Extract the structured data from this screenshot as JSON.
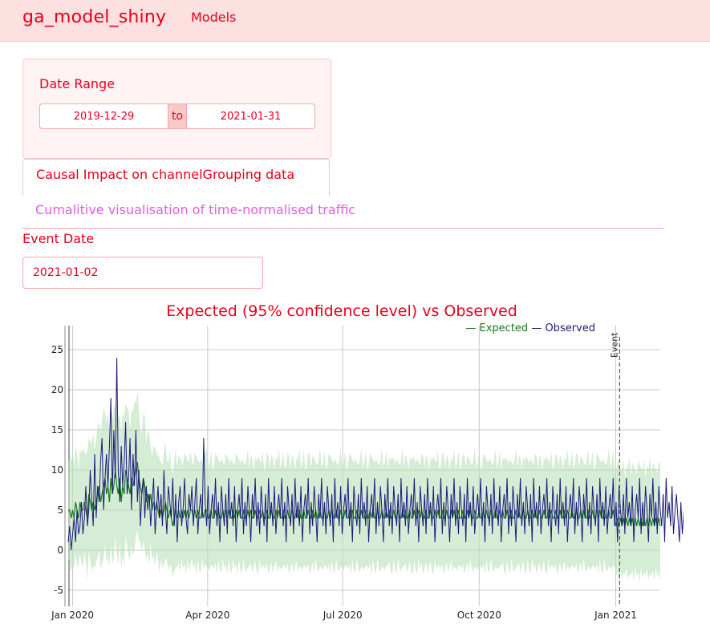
{
  "navbar": {
    "brand": "ga_model_shiny",
    "link": "Models"
  },
  "sidebar": {
    "date_range_label": "Date Range",
    "start_date": "2019-12-29",
    "separator": "to",
    "end_date": "2021-01-31"
  },
  "tabs": [
    {
      "label": "Causal Impact on channelGrouping data",
      "active": true
    },
    {
      "label": "Cumalitive visualisation of time-normalised traffic",
      "active": false
    }
  ],
  "event": {
    "label": "Event Date",
    "value": "2021-01-02"
  },
  "colors": {
    "accent": "#e8001c",
    "navbar_bg": "#fde0e0",
    "inactive_tab": "#e05fe0",
    "expected": "#1a7a1a",
    "observed": "#1a1a7a",
    "band": "#b9dfb9"
  },
  "chart_data": {
    "type": "line",
    "title": "Expected (95% confidence level) vs Observed",
    "legend": {
      "position": "top-right"
    },
    "x_start": "2019-12-29",
    "x_end": "2021-01-31",
    "x_ticks": [
      "Jan 2020",
      "Apr 2020",
      "Jul 2020",
      "Oct 2020",
      "Jan 2021"
    ],
    "x_tick_dates": [
      "2020-01-01",
      "2020-04-01",
      "2020-07-01",
      "2020-10-01",
      "2021-01-01"
    ],
    "y_ticks": [
      -5,
      0,
      5,
      10,
      15,
      20,
      25
    ],
    "ylim": [
      -7,
      28
    ],
    "grid": true,
    "event_date": "2021-01-02",
    "event_label": "Event",
    "series": [
      {
        "name": "Expected",
        "values": [
          5,
          5,
          4,
          5,
          4,
          6,
          5,
          4,
          6,
          5,
          5,
          6,
          5,
          4,
          7,
          6,
          5,
          6,
          5,
          6,
          7,
          8,
          6,
          7,
          8,
          9,
          7,
          8,
          6,
          9,
          7,
          8,
          10,
          8,
          7,
          9,
          6,
          8,
          7,
          10,
          9,
          8,
          7,
          9,
          8,
          9,
          10,
          11,
          9,
          8,
          7,
          9,
          8,
          6,
          7,
          6,
          7,
          5,
          6,
          5,
          6,
          5,
          4,
          5,
          4,
          5,
          6,
          5,
          4,
          5,
          4,
          3,
          4,
          5,
          4,
          5,
          4,
          5,
          4,
          5,
          4,
          5,
          4,
          5,
          5,
          4,
          5,
          4,
          5,
          4,
          4,
          5,
          4,
          5,
          5,
          4,
          4,
          5,
          4,
          4,
          5,
          4,
          5,
          4,
          4,
          5,
          4,
          5,
          4,
          5,
          4,
          4,
          5,
          4,
          5,
          4,
          5,
          4,
          4,
          5,
          4,
          4,
          5,
          4,
          5,
          4,
          4,
          5,
          4,
          4,
          5,
          4,
          5,
          4,
          4,
          5,
          4,
          4,
          5,
          4,
          4,
          5,
          4,
          5,
          4,
          4,
          5,
          4,
          4,
          5,
          4,
          4,
          5,
          4,
          4,
          5,
          4,
          5,
          4,
          4,
          5,
          4,
          4,
          5,
          4,
          4,
          5,
          4,
          5,
          4,
          4,
          5,
          4,
          4,
          5,
          4,
          4,
          5,
          4,
          5,
          4,
          4,
          5,
          4,
          4,
          5,
          4,
          4,
          5,
          4,
          4,
          5,
          4,
          5,
          4,
          4,
          5,
          4,
          4,
          5,
          4,
          4,
          5,
          4,
          4,
          5,
          4,
          5,
          4,
          4,
          5,
          4,
          4,
          5,
          4,
          4,
          5,
          4,
          5,
          4,
          4,
          5,
          4,
          4,
          5,
          4,
          4,
          5,
          4,
          5,
          4,
          4,
          5,
          4,
          4,
          5,
          4,
          4,
          5,
          4,
          5,
          4,
          4,
          5,
          4,
          4,
          5,
          4,
          4,
          5,
          4,
          5,
          4,
          4,
          5,
          4,
          4,
          5,
          4,
          4,
          5,
          4,
          5,
          4,
          4,
          5,
          4,
          4,
          5,
          4,
          4,
          5,
          4,
          5,
          4,
          4,
          5,
          4,
          4,
          5,
          4,
          4,
          5,
          4,
          5,
          4,
          4,
          5,
          4,
          4,
          5,
          4,
          4,
          5,
          4,
          5,
          4,
          4,
          5,
          4,
          4,
          5,
          4,
          4,
          5,
          4,
          5,
          4,
          4,
          5,
          4,
          4,
          5,
          4,
          4,
          5,
          4,
          5,
          4,
          4,
          5,
          4,
          4,
          5,
          4,
          4,
          5,
          4,
          5,
          4,
          4,
          5,
          4,
          4,
          5,
          4,
          4,
          5,
          4,
          5,
          4,
          4,
          5,
          4,
          4,
          5,
          4,
          4,
          5,
          4,
          5,
          4,
          4,
          5,
          4,
          4,
          5,
          4,
          4,
          5,
          4,
          5,
          4,
          4,
          5,
          4,
          4,
          5,
          4,
          4,
          5,
          4,
          3,
          4,
          3,
          4,
          3,
          4,
          3,
          4,
          3,
          4,
          3,
          4,
          3,
          4,
          3,
          4,
          3,
          4,
          3,
          4,
          3,
          4,
          3,
          4,
          3,
          4,
          3,
          4,
          3,
          4,
          3
        ]
      },
      {
        "name": "Observed",
        "values": [
          1,
          3,
          0,
          2,
          4,
          1,
          5,
          2,
          3,
          6,
          2,
          4,
          8,
          3,
          5,
          10,
          6,
          3,
          12,
          4,
          8,
          6,
          11,
          14,
          5,
          9,
          12,
          8,
          13,
          19,
          7,
          15,
          9,
          24,
          10,
          6,
          13,
          8,
          11,
          16,
          7,
          9,
          14,
          5,
          12,
          8,
          15,
          6,
          10,
          3,
          7,
          9,
          4,
          8,
          5,
          7,
          3,
          6,
          9,
          2,
          5,
          8,
          4,
          7,
          3,
          10,
          5,
          2,
          8,
          6,
          4,
          9,
          3,
          7,
          1,
          6,
          8,
          3,
          5,
          9,
          4,
          2,
          7,
          5,
          8,
          3,
          6,
          9,
          2,
          5,
          7,
          4,
          14,
          6,
          3,
          8,
          2,
          5,
          7,
          4,
          9,
          3,
          6,
          1,
          8,
          5,
          3,
          7,
          2,
          9,
          4,
          6,
          3,
          8,
          1,
          5,
          7,
          4,
          9,
          2,
          6,
          3,
          8,
          5,
          1,
          7,
          4,
          9,
          3,
          6,
          2,
          8,
          5,
          3,
          7,
          1,
          9,
          4,
          6,
          3,
          8,
          2,
          5,
          7,
          4,
          9,
          3,
          6,
          1,
          8,
          5,
          3,
          7,
          2,
          9,
          4,
          6,
          3,
          8,
          1,
          5,
          7,
          4,
          9,
          2,
          6,
          3,
          8,
          5,
          1,
          7,
          4,
          9,
          3,
          6,
          2,
          8,
          5,
          3,
          7,
          1,
          9,
          4,
          6,
          3,
          8,
          2,
          5,
          7,
          4,
          9,
          3,
          6,
          1,
          8,
          5,
          3,
          7,
          2,
          9,
          4,
          6,
          3,
          8,
          1,
          5,
          7,
          4,
          9,
          2,
          6,
          3,
          8,
          5,
          1,
          7,
          4,
          9,
          3,
          6,
          2,
          8,
          5,
          3,
          7,
          1,
          9,
          4,
          6,
          3,
          8,
          2,
          5,
          7,
          4,
          9,
          3,
          6,
          1,
          8,
          5,
          3,
          7,
          2,
          9,
          4,
          6,
          3,
          8,
          1,
          5,
          7,
          4,
          9,
          2,
          6,
          3,
          8,
          5,
          1,
          7,
          4,
          9,
          3,
          6,
          2,
          8,
          5,
          3,
          7,
          1,
          9,
          4,
          6,
          3,
          8,
          2,
          5,
          7,
          4,
          9,
          3,
          6,
          1,
          8,
          5,
          3,
          7,
          2,
          9,
          4,
          6,
          3,
          8,
          1,
          5,
          7,
          4,
          9,
          2,
          6,
          3,
          8,
          5,
          1,
          7,
          4,
          9,
          3,
          6,
          2,
          8,
          5,
          3,
          7,
          1,
          9,
          4,
          6,
          3,
          8,
          2,
          5,
          7,
          4,
          9,
          3,
          6,
          1,
          8,
          5,
          3,
          7,
          2,
          9,
          4,
          6,
          3,
          8,
          1,
          5,
          7,
          4,
          9,
          2,
          6,
          3,
          8,
          5,
          1,
          7,
          4,
          9,
          3,
          6,
          2,
          8,
          5,
          3,
          7,
          1,
          9,
          4,
          6,
          3,
          8,
          2,
          5,
          7,
          4,
          9,
          3,
          6,
          1,
          8,
          5,
          3,
          7,
          2,
          9,
          4,
          6,
          3,
          8,
          1,
          5,
          7,
          4,
          9,
          2,
          6,
          3,
          8,
          5,
          1,
          7,
          4,
          9,
          3,
          6,
          2,
          8,
          5,
          3,
          7,
          1,
          9,
          4,
          6,
          3,
          8,
          2,
          5,
          7,
          4,
          1,
          6,
          2,
          5,
          0,
          4,
          3,
          6,
          1,
          5,
          2,
          4,
          6,
          3,
          5,
          1,
          6,
          2,
          4,
          5,
          6,
          3,
          2,
          5,
          6,
          4,
          1,
          5
        ]
      }
    ],
    "band_halfwidth": [
      6,
      6,
      6,
      6,
      6,
      6,
      6,
      6,
      6,
      6,
      6,
      6,
      6,
      7,
      7,
      7,
      7,
      7,
      7,
      7,
      7,
      8,
      8,
      8,
      8,
      8,
      8,
      8,
      8,
      8,
      8,
      8,
      8,
      8,
      8,
      8,
      8,
      8,
      8,
      8,
      8,
      8,
      8,
      8,
      8,
      8,
      8,
      8,
      7,
      7,
      7,
      7,
      7,
      7,
      7,
      7,
      6,
      6,
      6,
      6,
      6,
      6,
      6,
      6,
      6,
      6,
      6,
      6,
      6,
      6,
      6,
      6,
      6,
      6,
      6,
      6,
      6,
      6,
      6,
      6,
      6,
      6,
      6,
      6,
      6,
      6,
      6,
      6,
      6,
      6,
      6,
      6,
      6,
      6,
      6,
      6,
      6,
      6,
      6,
      6,
      6,
      6,
      6,
      6,
      6,
      6,
      6,
      6,
      6,
      6,
      6,
      6,
      6,
      6,
      6,
      6,
      6,
      6,
      6,
      6,
      6,
      6,
      6,
      6,
      6,
      6,
      6,
      6,
      6,
      6,
      6,
      6,
      6,
      6,
      6,
      6,
      6,
      6,
      6,
      6,
      6,
      6,
      6,
      6,
      6,
      6,
      6,
      6,
      6,
      6,
      6,
      6,
      6,
      6,
      6,
      6,
      6,
      6,
      6,
      6,
      6,
      6,
      6,
      6,
      6,
      6,
      6,
      6,
      6,
      6,
      6,
      6,
      6,
      6,
      6,
      6,
      6,
      6,
      6,
      6,
      6,
      6,
      6,
      6,
      6,
      6,
      6,
      6,
      6,
      6,
      6,
      6,
      6,
      6,
      6,
      6,
      6,
      6,
      6,
      6,
      6,
      6,
      6,
      6,
      6,
      6,
      6,
      6,
      6,
      6,
      6,
      6,
      6,
      6,
      6,
      6,
      6,
      6,
      6,
      6,
      6,
      6,
      6,
      6,
      6,
      6,
      6,
      6,
      6,
      6,
      6,
      6,
      6,
      6,
      6,
      6,
      6,
      6,
      6,
      6,
      6,
      6,
      6,
      6,
      6,
      6,
      6,
      6,
      6,
      6,
      6,
      6,
      6,
      6,
      6,
      6,
      6,
      6,
      6,
      6,
      6,
      6,
      6,
      6,
      6,
      6,
      6,
      6,
      6,
      6,
      6,
      6,
      6,
      6,
      6,
      6,
      6,
      6,
      6,
      6,
      6,
      6,
      6,
      6,
      6,
      6,
      6,
      6,
      6,
      6,
      6,
      6,
      6,
      6,
      6,
      6,
      6,
      6,
      6,
      6,
      6,
      6,
      6,
      6,
      6,
      6,
      6,
      6,
      6,
      6,
      6,
      6,
      6,
      6,
      6,
      6,
      6,
      6,
      6,
      6,
      6,
      6,
      6,
      6,
      6,
      6,
      6,
      6,
      6,
      6,
      6,
      6,
      6,
      6,
      6,
      6,
      6,
      6,
      6,
      6,
      6,
      6,
      6,
      6,
      6,
      6,
      6,
      6,
      6,
      6,
      6,
      6,
      6,
      6,
      6,
      6,
      6,
      6,
      6,
      6,
      6,
      6,
      6,
      6,
      6,
      6,
      6,
      6,
      6,
      6,
      6,
      6,
      6,
      6,
      6,
      6,
      6,
      6,
      6,
      6,
      6,
      6,
      6,
      6,
      6,
      6,
      6,
      6,
      6,
      6,
      6,
      6,
      6,
      6,
      6,
      6,
      6,
      6,
      6,
      6,
      6,
      6,
      6,
      6,
      6,
      6,
      6,
      6,
      6,
      6,
      6,
      6,
      6,
      6,
      6,
      6,
      6,
      6,
      6,
      6,
      6,
      6,
      6,
      6,
      6,
      6,
      6,
      6,
      6,
      6,
      6,
      6,
      6
    ]
  }
}
